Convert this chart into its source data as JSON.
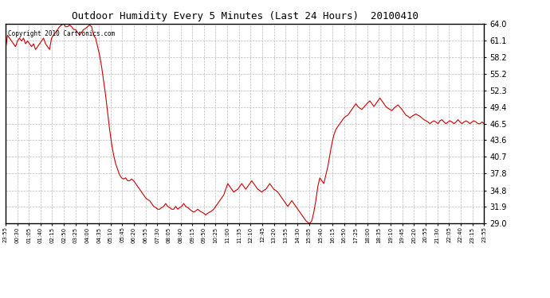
{
  "title": "Outdoor Humidity Every 5 Minutes (Last 24 Hours)  20100410",
  "copyright": "Copyright 2010 Cartronics.com",
  "line_color": "#cc0000",
  "background_color": "#ffffff",
  "grid_color": "#bbbbbb",
  "ylim": [
    29.0,
    64.0
  ],
  "yticks": [
    29.0,
    31.9,
    34.8,
    37.8,
    40.7,
    43.6,
    46.5,
    49.4,
    52.3,
    55.2,
    58.2,
    61.1,
    64.0
  ],
  "xtick_labels": [
    "23:55",
    "00:30",
    "01:05",
    "01:40",
    "02:15",
    "02:50",
    "03:25",
    "04:00",
    "04:35",
    "05:10",
    "05:45",
    "06:20",
    "06:55",
    "07:30",
    "08:05",
    "08:40",
    "09:15",
    "09:50",
    "10:25",
    "11:00",
    "11:35",
    "12:10",
    "12:45",
    "13:20",
    "13:55",
    "14:30",
    "15:05",
    "15:40",
    "16:15",
    "16:50",
    "17:25",
    "18:00",
    "18:35",
    "19:10",
    "19:45",
    "20:20",
    "20:55",
    "21:30",
    "22:05",
    "22:40",
    "23:15",
    "23:55"
  ],
  "humidity_values": [
    59.5,
    62.0,
    61.5,
    61.0,
    60.5,
    60.0,
    61.0,
    61.5,
    61.0,
    61.5,
    60.5,
    61.0,
    60.5,
    60.0,
    60.5,
    59.5,
    60.0,
    60.5,
    61.0,
    61.5,
    60.5,
    60.0,
    59.5,
    61.5,
    62.0,
    62.5,
    63.0,
    63.5,
    63.8,
    64.0,
    63.5,
    63.5,
    63.8,
    63.5,
    63.0,
    63.0,
    62.5,
    62.0,
    62.5,
    63.0,
    63.2,
    63.5,
    63.8,
    63.5,
    62.0,
    61.5,
    60.0,
    58.5,
    56.5,
    54.0,
    51.5,
    48.5,
    45.5,
    43.0,
    41.0,
    39.5,
    38.5,
    37.5,
    37.0,
    36.8,
    37.0,
    36.5,
    36.5,
    36.8,
    36.5,
    36.0,
    35.5,
    35.0,
    34.5,
    34.0,
    33.5,
    33.2,
    33.0,
    32.5,
    32.0,
    31.8,
    31.5,
    31.5,
    31.8,
    32.0,
    32.5,
    32.0,
    31.8,
    31.5,
    31.5,
    32.0,
    31.5,
    31.8,
    32.0,
    32.5,
    32.0,
    31.8,
    31.5,
    31.2,
    31.0,
    31.2,
    31.5,
    31.2,
    31.0,
    30.8,
    30.5,
    30.8,
    31.0,
    31.2,
    31.5,
    32.0,
    32.5,
    33.0,
    33.5,
    34.0,
    35.0,
    36.0,
    35.5,
    35.0,
    34.5,
    34.8,
    35.0,
    35.5,
    36.0,
    35.5,
    35.0,
    35.5,
    36.0,
    36.5,
    36.0,
    35.5,
    35.0,
    34.8,
    34.5,
    34.8,
    35.0,
    35.5,
    36.0,
    35.5,
    35.0,
    34.8,
    34.5,
    34.0,
    33.5,
    33.0,
    32.5,
    32.0,
    32.5,
    33.0,
    32.5,
    32.0,
    31.5,
    31.0,
    30.5,
    30.0,
    29.5,
    29.2,
    29.0,
    29.5,
    31.0,
    33.0,
    35.5,
    37.0,
    36.5,
    36.0,
    37.5,
    39.0,
    41.0,
    43.0,
    44.5,
    45.5,
    46.0,
    46.5,
    47.0,
    47.5,
    47.8,
    48.0,
    48.5,
    49.0,
    49.5,
    50.0,
    49.5,
    49.2,
    49.0,
    49.4,
    49.8,
    50.2,
    50.5,
    50.0,
    49.5,
    50.0,
    50.5,
    51.0,
    50.5,
    50.0,
    49.5,
    49.2,
    49.0,
    48.8,
    49.2,
    49.5,
    49.8,
    49.4,
    49.0,
    48.5,
    48.0,
    47.8,
    47.5,
    47.8,
    48.0,
    48.2,
    48.0,
    47.8,
    47.5,
    47.2,
    47.0,
    46.8,
    46.5,
    46.8,
    47.0,
    46.8,
    46.5,
    47.0,
    47.2,
    46.8,
    46.5,
    46.8,
    47.0,
    46.8,
    46.5,
    46.8,
    47.2,
    46.8,
    46.5,
    46.8,
    47.0,
    46.8,
    46.5,
    46.8,
    47.0,
    46.8,
    46.5,
    46.5,
    46.8,
    46.5
  ]
}
